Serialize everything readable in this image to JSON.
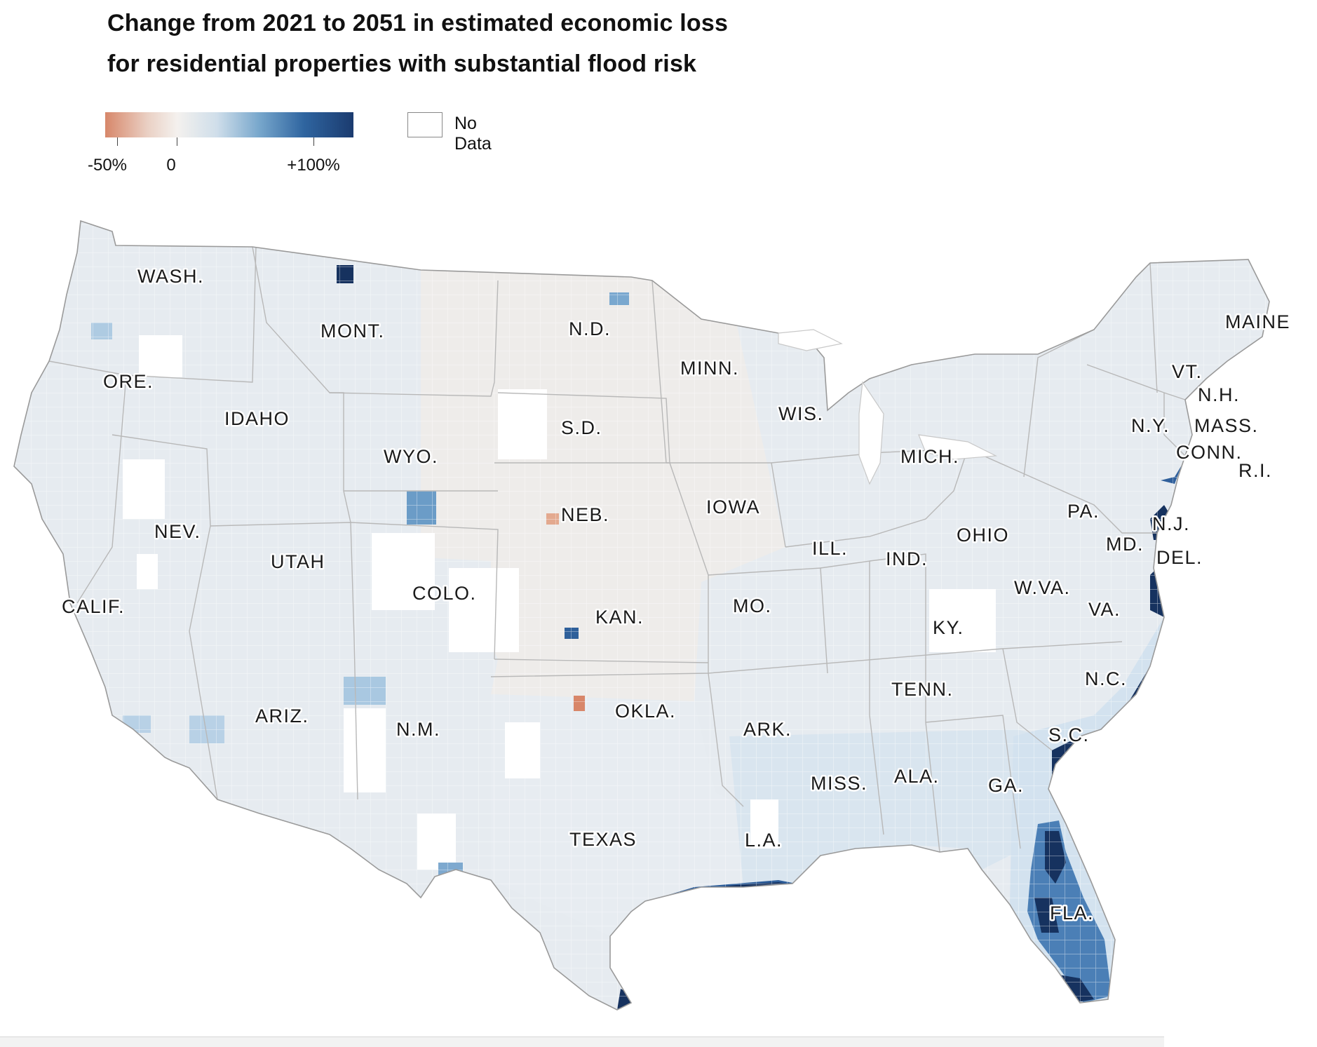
{
  "title": {
    "line1": "Change from 2021 to 2051 in estimated economic loss",
    "line2": "for residential properties with substantial flood risk"
  },
  "legend": {
    "ticks": [
      "-50%",
      "0",
      "+100%"
    ],
    "no_data": "No Data",
    "colors": [
      "#d7876a",
      "#f4f1ee",
      "#78a7cc",
      "#1b3b6f"
    ]
  },
  "map": {
    "base_color": "#e6ebf0",
    "states": {
      "wash": "WASH.",
      "ore": "ORE.",
      "calif": "CALIF.",
      "idaho": "IDAHO",
      "nev": "NEV.",
      "mont": "MONT.",
      "wyo": "WYO.",
      "utah": "UTAH",
      "ariz": "ARIZ.",
      "colo": "COLO.",
      "nm": "N.M.",
      "nd": "N.D.",
      "sd": "S.D.",
      "neb": "NEB.",
      "kan": "KAN.",
      "okla": "OKLA.",
      "texas": "TEXAS",
      "minn": "MINN.",
      "iowa": "IOWA",
      "mo": "MO.",
      "ark": "ARK.",
      "la": "L.A.",
      "wis": "WIS.",
      "ill": "ILL.",
      "mich": "MICH.",
      "ind": "IND.",
      "ohio": "OHIO",
      "ky": "KY.",
      "tenn": "TENN.",
      "miss": "MISS.",
      "ala": "ALA.",
      "ga": "GA.",
      "fla": "FLA.",
      "sc": "S.C.",
      "nc": "N.C.",
      "va": "VA.",
      "wva": "W.VA.",
      "pa": "PA.",
      "ny": "N.Y.",
      "md": "MD.",
      "del": "DEL.",
      "nj": "N.J.",
      "conn": "CONN.",
      "ri": "R.I.",
      "mass": "MASS.",
      "vt": "VT.",
      "nh": "N.H.",
      "maine": "MAINE"
    }
  }
}
